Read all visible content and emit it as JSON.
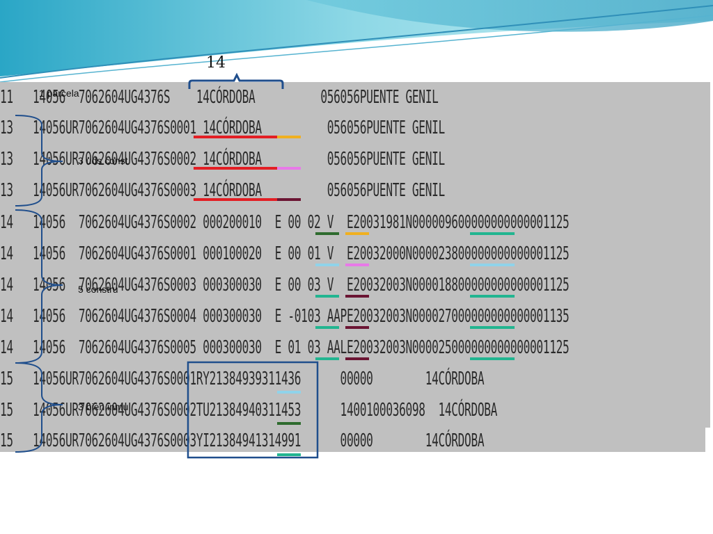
{
  "header_number": "14",
  "annotations": {
    "parcela": "1 parcela",
    "uds_const": "3 uds const",
    "construcciones": "5 constru",
    "bienes": "3 bien inmu"
  },
  "records": [
    {
      "type": "11",
      "text": "14056  7062604UG4376S    14CÓRDOBA          056056PUENTE GENIL"
    },
    {
      "type": "13",
      "text": "14056UR7062604UG4376S0001 14CÓRDOBA          056056PUENTE GENIL"
    },
    {
      "type": "13",
      "text": "14056UR7062604UG4376S0002 14CÓRDOBA          056056PUENTE GENIL"
    },
    {
      "type": "13",
      "text": "14056UR7062604UG4376S0003 14CÓRDOBA          056056PUENTE GENIL"
    },
    {
      "type": "14",
      "text": "14056  7062604UG4376S0002 000200010  E 00 02 V  E20031981N000009600000000000001125"
    },
    {
      "type": "14",
      "text": "14056  7062604UG4376S0001 000100020  E 00 01 V  E20032000N000023800000000000001125"
    },
    {
      "type": "14",
      "text": "14056  7062604UG4376S0003 000300030  E 00 03 V  E20032003N000018800000000000001125"
    },
    {
      "type": "14",
      "text": "14056  7062604UG4376S0004 000300030  E -0103 AAPE20032003N000027000000000000001135"
    },
    {
      "type": "14",
      "text": "14056  7062604UG4376S0005 000300030  E 01 03 AALE20032003N000025000000000000001125"
    },
    {
      "type": "15",
      "text": "14056UR7062604UG4376S0001RY21384939311436      00000        14CÓRDOBA"
    },
    {
      "type": "15",
      "text": "14056UR7062604UG4376S0002TU21384940311453      1400100036098  14CÓRDOBA"
    },
    {
      "type": "15",
      "text": "14056UR7062604UG4376S0003YI21384941314991      00000        14CÓRDOBA"
    }
  ],
  "colors": {
    "panel": "#c0c0c0",
    "red": "#e31e24",
    "orange": "#f0b020",
    "pink": "#e879e8",
    "maroon": "#6b1533",
    "dark-green": "#2e6b2e",
    "light-blue": "#8fd3ea",
    "teal": "#22b590",
    "bracket": "#1f4e8c"
  }
}
